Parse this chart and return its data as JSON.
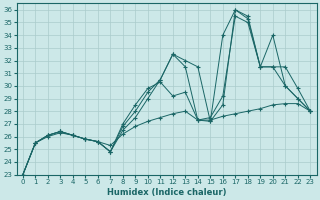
{
  "xlabel": "Humidex (Indice chaleur)",
  "xlim": [
    -0.5,
    23.5
  ],
  "ylim": [
    23,
    36.5
  ],
  "xticks": [
    0,
    1,
    2,
    3,
    4,
    5,
    6,
    7,
    8,
    9,
    10,
    11,
    12,
    13,
    14,
    15,
    16,
    17,
    18,
    19,
    20,
    21,
    22,
    23
  ],
  "yticks": [
    23,
    24,
    25,
    26,
    27,
    28,
    29,
    30,
    31,
    32,
    33,
    34,
    35,
    36
  ],
  "background_color": "#cce8e8",
  "grid_color": "#aacccc",
  "line_color": "#1a6666",
  "lines": [
    {
      "x": [
        0,
        1,
        2,
        3,
        4,
        5,
        6,
        7,
        8,
        9,
        10,
        11,
        12,
        13,
        14,
        15,
        16,
        17,
        18,
        19,
        20,
        21,
        22,
        23
      ],
      "y": [
        23,
        25.5,
        26.0,
        26.3,
        26.1,
        25.8,
        25.6,
        25.3,
        26.2,
        26.8,
        27.2,
        27.5,
        27.8,
        28.0,
        27.3,
        27.3,
        27.6,
        27.8,
        28.0,
        28.2,
        28.5,
        28.6,
        28.6,
        28.0
      ]
    },
    {
      "x": [
        0,
        1,
        2,
        3,
        4,
        5,
        6,
        7,
        8,
        9,
        10,
        11,
        12,
        13,
        14,
        15,
        16,
        17,
        18,
        19,
        20,
        21,
        22,
        23
      ],
      "y": [
        23,
        25.5,
        26.1,
        26.4,
        26.1,
        25.8,
        25.6,
        24.8,
        26.5,
        27.5,
        29.0,
        30.5,
        32.5,
        32.0,
        31.5,
        27.2,
        34.0,
        36.0,
        35.3,
        31.5,
        34.0,
        30.0,
        29.0,
        28.0
      ]
    },
    {
      "x": [
        0,
        1,
        2,
        3,
        4,
        5,
        6,
        7,
        8,
        9,
        10,
        11,
        12,
        13,
        14,
        15,
        16,
        17,
        18,
        19,
        20,
        21,
        22,
        23
      ],
      "y": [
        23,
        25.5,
        26.1,
        26.4,
        26.1,
        25.8,
        25.6,
        24.8,
        26.8,
        28.0,
        29.5,
        30.5,
        32.5,
        31.5,
        27.3,
        27.2,
        28.5,
        36.0,
        35.5,
        31.5,
        31.5,
        30.0,
        29.0,
        28.0
      ]
    },
    {
      "x": [
        0,
        1,
        2,
        3,
        4,
        5,
        6,
        7,
        8,
        9,
        10,
        11,
        12,
        13,
        14,
        15,
        16,
        17,
        18,
        19,
        20,
        21,
        22,
        23
      ],
      "y": [
        23,
        25.5,
        26.1,
        26.4,
        26.1,
        25.8,
        25.6,
        24.8,
        27.0,
        28.5,
        29.8,
        30.3,
        29.2,
        29.5,
        27.3,
        27.5,
        29.2,
        35.5,
        35.0,
        31.5,
        31.5,
        31.5,
        29.8,
        28.0
      ]
    }
  ]
}
